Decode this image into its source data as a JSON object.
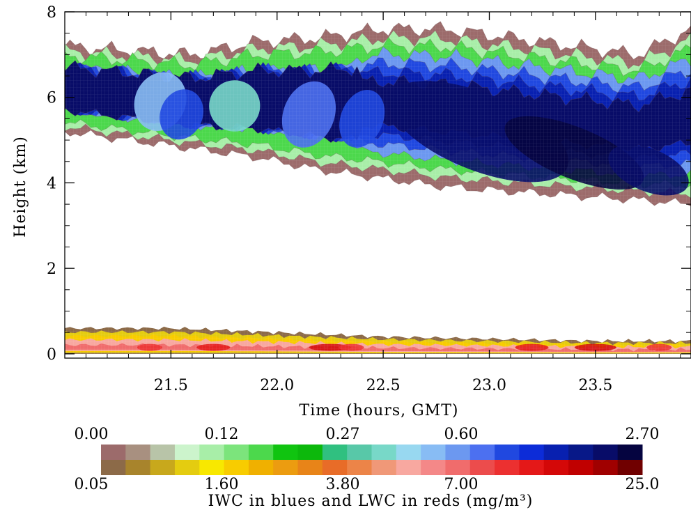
{
  "chart_data": {
    "type": "heatmap",
    "xlabel": "Time (hours, GMT)",
    "ylabel": "Height (km)",
    "xlim": [
      21.0,
      23.95
    ],
    "ylim": [
      -0.1,
      8.0
    ],
    "xticks": [
      "21.5",
      "22.0",
      "22.5",
      "23.0",
      "23.5"
    ],
    "xtick_values": [
      21.5,
      22.0,
      22.5,
      23.0,
      23.5
    ],
    "yticks": [
      "0",
      "2",
      "4",
      "6",
      "8"
    ],
    "ytick_values": [
      0,
      2,
      4,
      6,
      8
    ],
    "colorbar": {
      "title": "IWC in blues and LWC in reds (mg/m³)",
      "iwc_tick_labels": [
        "0.00",
        "0.12",
        "0.27",
        "0.60",
        "2.70"
      ],
      "lwc_tick_labels": [
        "0.05",
        "1.60",
        "3.80",
        "7.00",
        "25.0"
      ],
      "iwc_colors": [
        "#9c6b6b",
        "#a89080",
        "#b8c4a8",
        "#ccf4cc",
        "#a8eea8",
        "#7ce47c",
        "#4cd84c",
        "#10c410",
        "#0cb80c",
        "#30c080",
        "#58c8a8",
        "#78d8c8",
        "#98d8f0",
        "#88bcf4",
        "#6c98f0",
        "#4c70f0",
        "#2048e0",
        "#0c2cd8",
        "#0820b0",
        "#081888",
        "#080c68",
        "#050440"
      ],
      "lwc_colors": [
        "#8c6a48",
        "#a8842c",
        "#c8a81c",
        "#e4cc10",
        "#f8e800",
        "#f8cc00",
        "#f0b000",
        "#ec9c10",
        "#e88418",
        "#e86c28",
        "#ec8448",
        "#f09878",
        "#f8a8a0",
        "#f48888",
        "#f06c6c",
        "#ec4c4c",
        "#ec3030",
        "#e41818",
        "#d40808",
        "#c00000",
        "#a00000",
        "#700000"
      ]
    },
    "ice_cloud": {
      "x": [
        21.0,
        21.3,
        21.6,
        21.9,
        22.2,
        22.5,
        22.8,
        23.1,
        23.4,
        23.7,
        23.95
      ],
      "top_km": [
        7.2,
        7.1,
        7.0,
        7.3,
        7.4,
        7.6,
        7.6,
        7.4,
        7.2,
        7.0,
        7.6
      ],
      "base_km": [
        5.2,
        5.0,
        4.8,
        4.6,
        4.3,
        4.1,
        3.9,
        3.8,
        3.7,
        3.6,
        3.5
      ],
      "peak_iwc": [
        0.12,
        0.27,
        0.35,
        0.45,
        0.6,
        2.7,
        2.7,
        2.7,
        2.7,
        2.0,
        2.4
      ]
    },
    "liquid_layer": {
      "x": [
        21.0,
        21.5,
        22.0,
        22.5,
        23.0,
        23.5,
        23.95
      ],
      "top_km": [
        0.6,
        0.6,
        0.5,
        0.4,
        0.35,
        0.3,
        0.3
      ],
      "base_km": [
        0.0,
        0.0,
        0.0,
        0.0,
        0.0,
        0.0,
        0.0
      ],
      "peak_lwc": [
        7.0,
        7.0,
        7.0,
        25.0,
        7.0,
        7.0,
        7.0
      ]
    }
  }
}
